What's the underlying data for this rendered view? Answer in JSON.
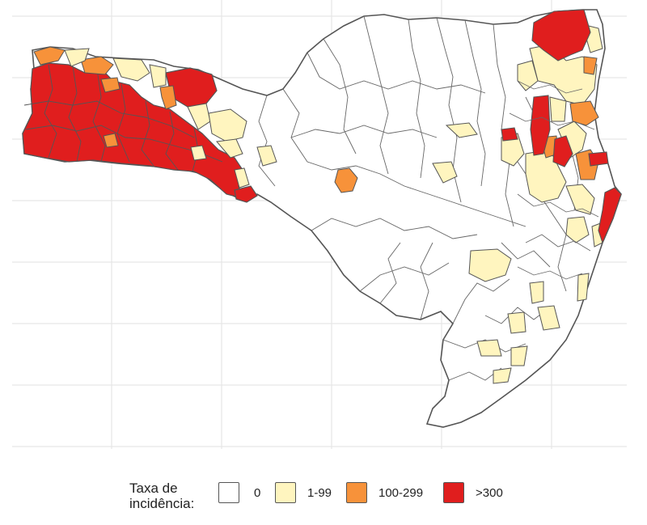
{
  "legend": {
    "title": "Taxa de\nincidência:",
    "items": [
      {
        "label": "0",
        "color": "#ffffff"
      },
      {
        "label": "1-99",
        "color": "#fff5bf"
      },
      {
        "label": "100-299",
        "color": "#f7923a"
      },
      {
        "label": ">300",
        "color": "#e01e1e"
      }
    ]
  },
  "colors": {
    "outline": "#555555",
    "grid": "#e6e6e6",
    "background": "#ffffff"
  }
}
